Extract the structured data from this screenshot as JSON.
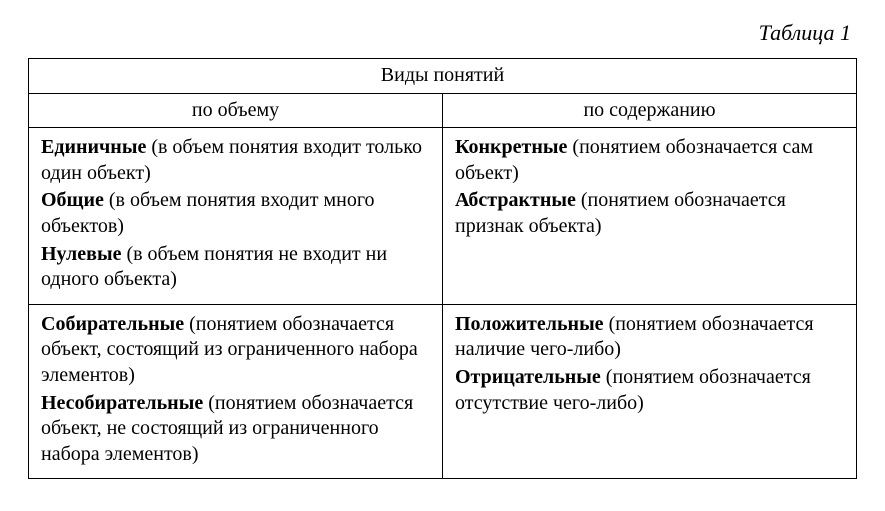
{
  "caption": "Таблица 1",
  "table": {
    "title": "Виды понятий",
    "columns": [
      "по объему",
      "по содержанию"
    ],
    "rows": [
      {
        "left": [
          {
            "term": "Единичные",
            "desc": " (в объем понятия входит только один объект)"
          },
          {
            "term": "Общие",
            "desc": " (в объем понятия входит много объектов)"
          },
          {
            "term": "Нулевые",
            "desc": " (в объем понятия не входит ни одного объекта)"
          }
        ],
        "right": [
          {
            "term": "Конкретные",
            "desc": " (понятием обозначается сам объект)"
          },
          {
            "term": "Абстрактные",
            "desc": " (понятием обозначается признак объекта)"
          }
        ]
      },
      {
        "left": [
          {
            "term": "Собирательные",
            "desc": " (понятием обозначается объект, состоящий из ограниченного набора элементов)"
          },
          {
            "term": "Несобирательные",
            "desc": " (понятием обозначается объект, не состоящий из ограниченного набора элементов)"
          }
        ],
        "right": [
          {
            "term": "Положительные",
            "desc": " (понятием обозначается наличие чего-либо)"
          },
          {
            "term": "Отрицательные",
            "desc": " (понятием обозначается отсутствие чего-либо)"
          }
        ]
      }
    ]
  },
  "style": {
    "background_color": "#ffffff",
    "text_color": "#000000",
    "border_color": "#000000",
    "font_family": "Times New Roman",
    "caption_fontsize": 22,
    "cell_fontsize": 20,
    "border_width": 1.5
  }
}
